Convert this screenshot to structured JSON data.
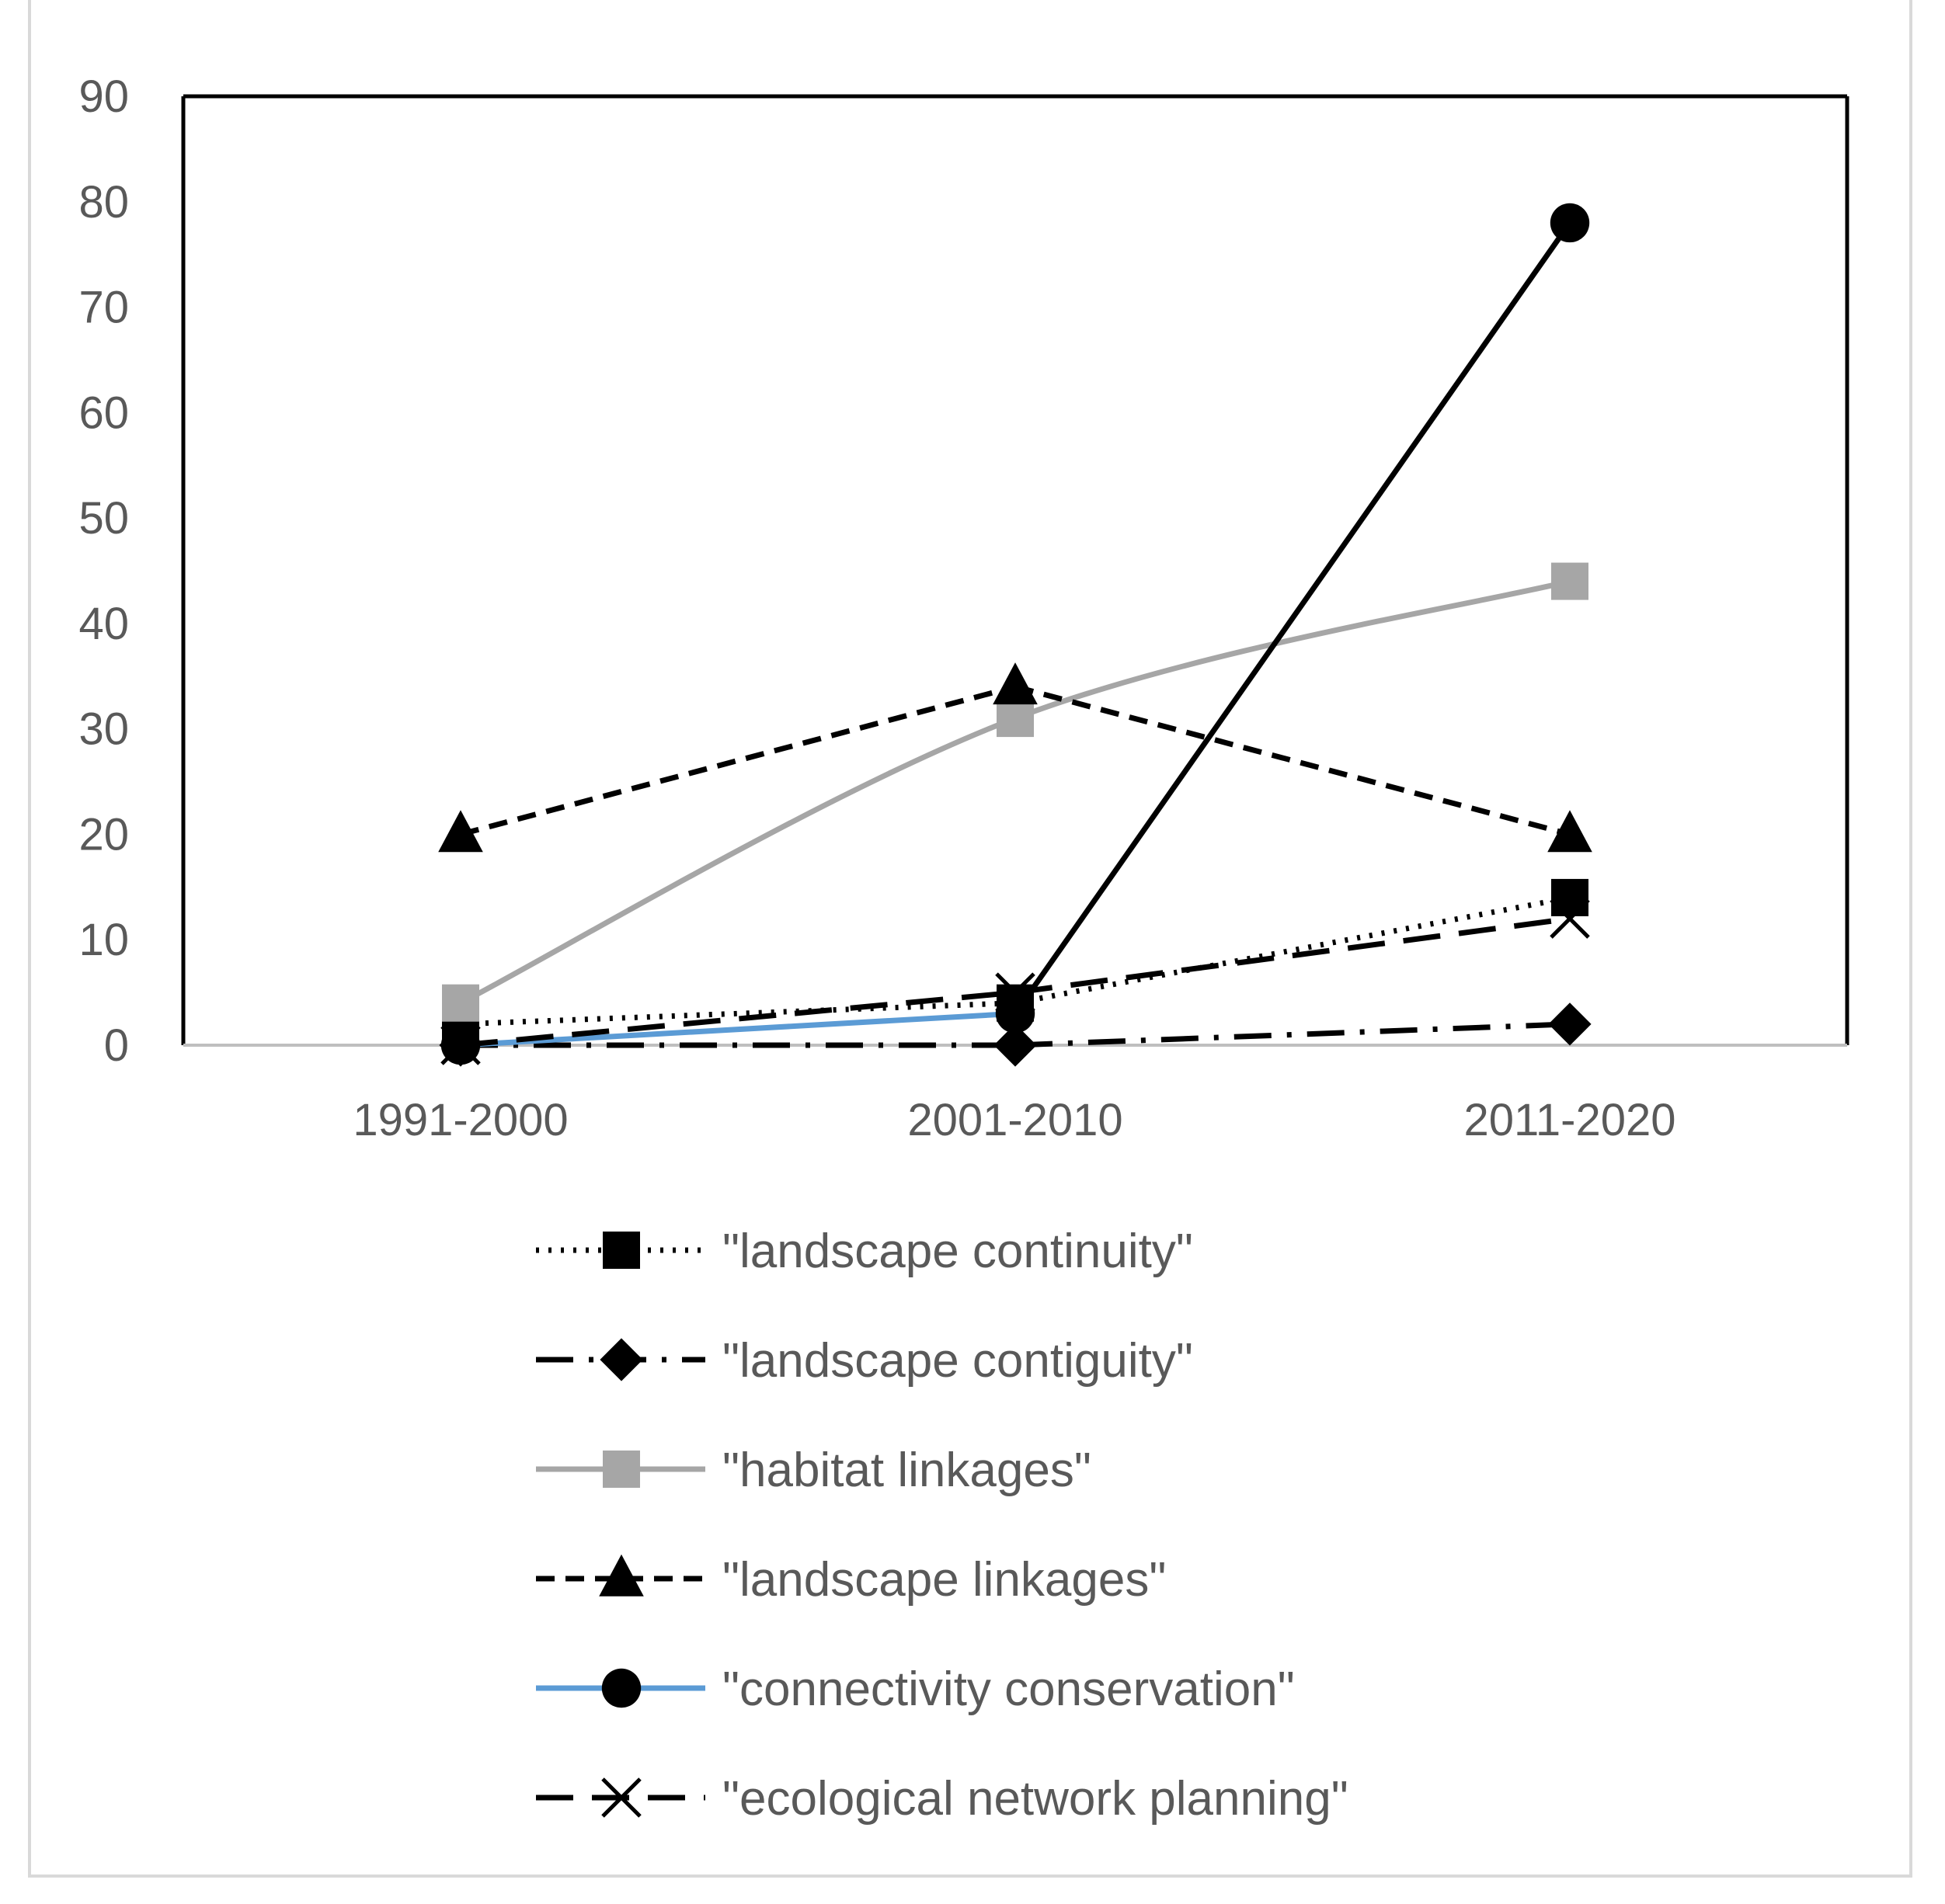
{
  "chart_data": {
    "type": "line",
    "title": "",
    "xlabel": "",
    "ylabel": "",
    "categories": [
      "1991-2000",
      "2001-2010",
      "2011-2020"
    ],
    "ylim": [
      0,
      90
    ],
    "yticks": [
      0,
      10,
      20,
      30,
      40,
      50,
      60,
      70,
      80,
      90
    ],
    "grid": false,
    "legend_position": "bottom",
    "series": [
      {
        "name": "\"landscape continuity\"",
        "values": [
          2,
          4,
          14
        ],
        "color": "#000000",
        "dash": "dotted",
        "marker": "square",
        "line_kind": "straight"
      },
      {
        "name": "\"landscape contiguity\"",
        "values": [
          0,
          0,
          2
        ],
        "color": "#000000",
        "dash": "long-dash-dot",
        "marker": "diamond",
        "line_kind": "straight"
      },
      {
        "name": "\"habitat linkages\"",
        "values": [
          4,
          31,
          44
        ],
        "color": "#a6a6a6",
        "dash": "solid",
        "marker": "square",
        "line_kind": "smooth"
      },
      {
        "name": "\"landscape linkages\"",
        "values": [
          20,
          34,
          20
        ],
        "color": "#000000",
        "dash": "dashed",
        "marker": "triangle",
        "line_kind": "straight"
      },
      {
        "name": "\"connectivity conservation\"",
        "values": [
          0,
          3,
          78
        ],
        "color": "#5b9bd5",
        "line_color_segments": [
          "#5b9bd5",
          "#000000"
        ],
        "marker_color": "#000000",
        "dash": "solid",
        "marker": "circle",
        "line_kind": "straight"
      },
      {
        "name": "\"ecological network planning\"",
        "values": [
          0,
          5,
          12
        ],
        "color": "#000000",
        "dash": "long-dash",
        "marker": "x",
        "line_kind": "straight"
      }
    ]
  }
}
